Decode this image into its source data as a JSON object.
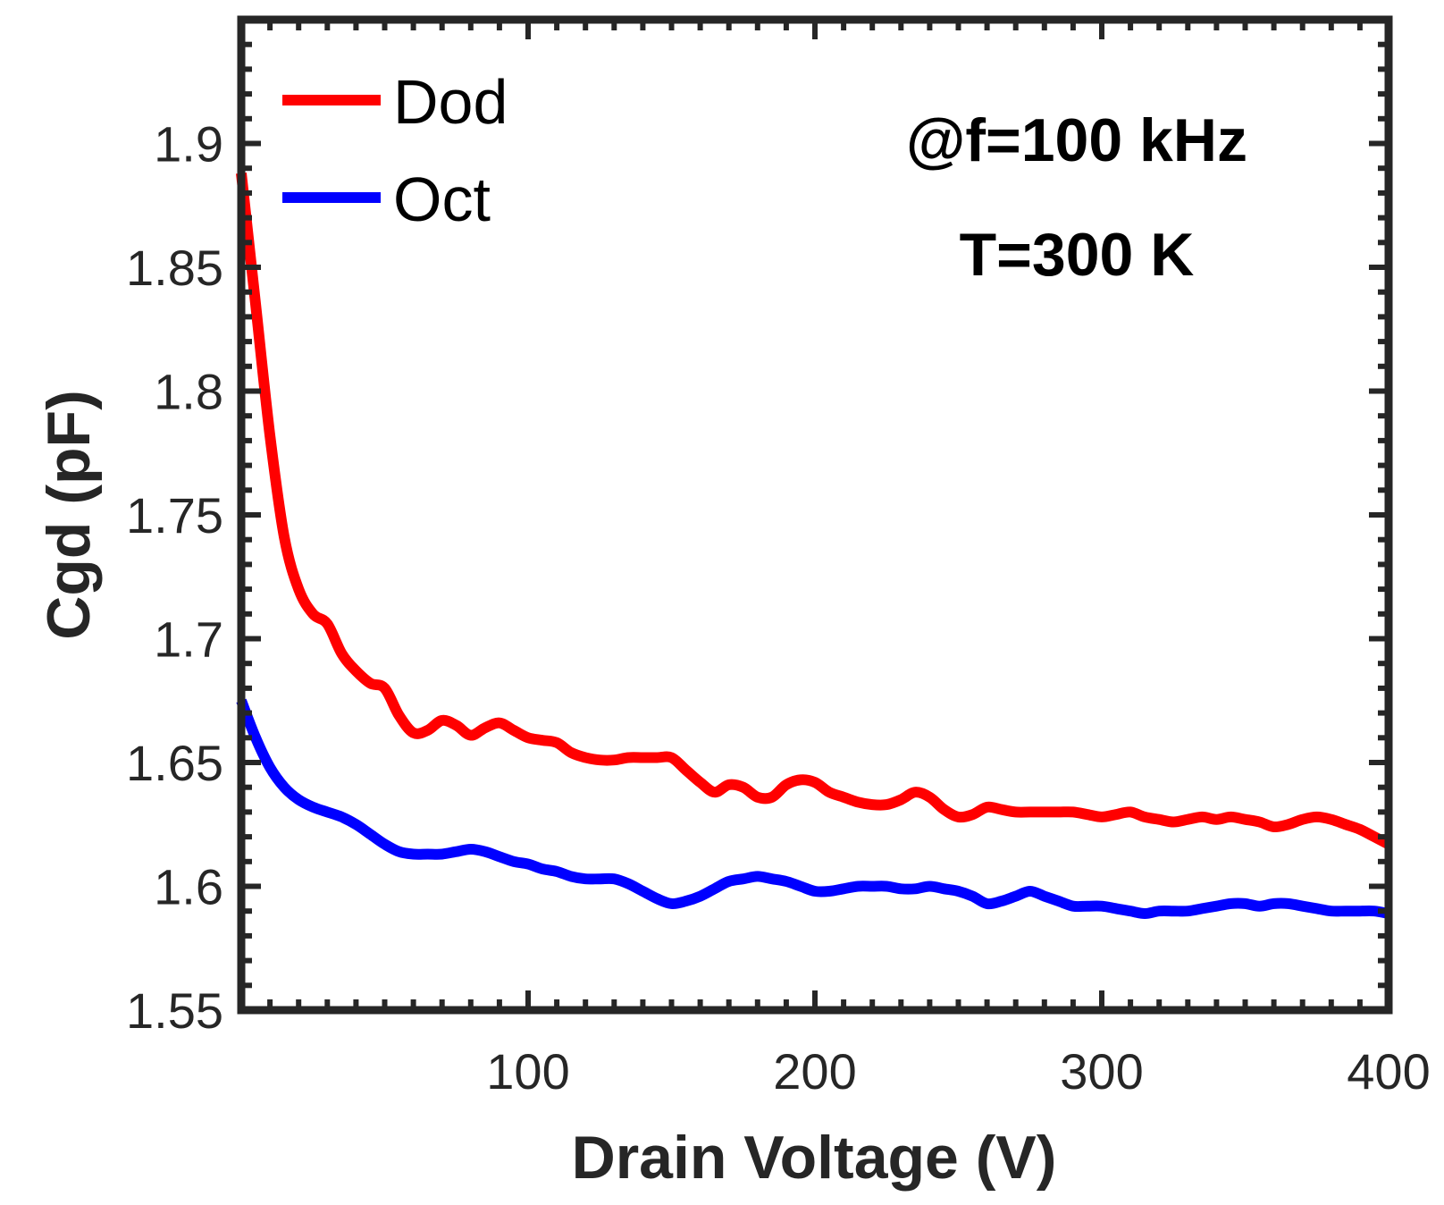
{
  "chart_data": {
    "type": "line",
    "xlabel": "Drain Voltage (V)",
    "ylabel": "Cgd (pF)",
    "xlim": [
      0,
      400
    ],
    "ylim": [
      1.55,
      1.95
    ],
    "xticks": [
      100,
      200,
      300,
      400
    ],
    "xtick_labels": [
      "100",
      "200",
      "300",
      "400"
    ],
    "yticks": [
      1.55,
      1.6,
      1.65,
      1.7,
      1.75,
      1.8,
      1.85,
      1.9
    ],
    "ytick_labels": [
      "1.55",
      "1.6",
      "1.65",
      "1.7",
      "1.75",
      "1.8",
      "1.85",
      "1.9"
    ],
    "grid": false,
    "legend_position": "top-left",
    "annotations": [
      "@f=100 kHz",
      "T=300 K"
    ],
    "series": [
      {
        "name": "Dod",
        "color": "#ff0000",
        "x": [
          0,
          5,
          10,
          15,
          20,
          25,
          30,
          35,
          40,
          45,
          50,
          55,
          60,
          65,
          70,
          75,
          80,
          85,
          90,
          95,
          100,
          105,
          110,
          115,
          120,
          125,
          130,
          135,
          140,
          145,
          150,
          155,
          160,
          165,
          170,
          175,
          180,
          185,
          190,
          195,
          200,
          205,
          210,
          215,
          220,
          225,
          230,
          235,
          240,
          245,
          250,
          255,
          260,
          265,
          270,
          275,
          280,
          285,
          290,
          295,
          300,
          305,
          310,
          315,
          320,
          325,
          330,
          335,
          340,
          345,
          350,
          355,
          360,
          365,
          370,
          375,
          380,
          385,
          390,
          395,
          400
        ],
        "values": [
          1.888,
          1.835,
          1.782,
          1.741,
          1.72,
          1.71,
          1.706,
          1.694,
          1.687,
          1.682,
          1.68,
          1.669,
          1.662,
          1.663,
          1.667,
          1.665,
          1.661,
          1.664,
          1.666,
          1.663,
          1.66,
          1.659,
          1.658,
          1.654,
          1.652,
          1.651,
          1.651,
          1.652,
          1.652,
          1.652,
          1.652,
          1.647,
          1.642,
          1.638,
          1.641,
          1.64,
          1.636,
          1.636,
          1.641,
          1.643,
          1.642,
          1.638,
          1.636,
          1.634,
          1.633,
          1.633,
          1.635,
          1.638,
          1.636,
          1.631,
          1.628,
          1.629,
          1.632,
          1.631,
          1.63,
          1.63,
          1.63,
          1.63,
          1.63,
          1.629,
          1.628,
          1.629,
          1.63,
          1.628,
          1.627,
          1.626,
          1.627,
          1.628,
          1.627,
          1.628,
          1.627,
          1.626,
          1.624,
          1.625,
          1.627,
          1.628,
          1.627,
          1.625,
          1.623,
          1.62,
          1.617
        ]
      },
      {
        "name": "Oct",
        "color": "#0000ff",
        "x": [
          0,
          5,
          10,
          15,
          20,
          25,
          30,
          35,
          40,
          45,
          50,
          55,
          60,
          65,
          70,
          75,
          80,
          85,
          90,
          95,
          100,
          105,
          110,
          115,
          120,
          125,
          130,
          135,
          140,
          145,
          150,
          155,
          160,
          165,
          170,
          175,
          180,
          185,
          190,
          195,
          200,
          205,
          210,
          215,
          220,
          225,
          230,
          235,
          240,
          245,
          250,
          255,
          260,
          265,
          270,
          275,
          280,
          285,
          290,
          295,
          300,
          305,
          310,
          315,
          320,
          325,
          330,
          335,
          340,
          345,
          350,
          355,
          360,
          365,
          370,
          375,
          380,
          385,
          390,
          395,
          400
        ],
        "values": [
          1.675,
          1.66,
          1.648,
          1.64,
          1.635,
          1.632,
          1.63,
          1.628,
          1.625,
          1.621,
          1.617,
          1.614,
          1.613,
          1.613,
          1.613,
          1.614,
          1.615,
          1.614,
          1.612,
          1.61,
          1.609,
          1.607,
          1.606,
          1.604,
          1.603,
          1.603,
          1.603,
          1.601,
          1.598,
          1.595,
          1.593,
          1.594,
          1.596,
          1.599,
          1.602,
          1.603,
          1.604,
          1.603,
          1.602,
          1.6,
          1.598,
          1.598,
          1.599,
          1.6,
          1.6,
          1.6,
          1.599,
          1.599,
          1.6,
          1.599,
          1.598,
          1.596,
          1.593,
          1.594,
          1.596,
          1.598,
          1.596,
          1.594,
          1.592,
          1.592,
          1.592,
          1.591,
          1.59,
          1.589,
          1.59,
          1.59,
          1.59,
          1.591,
          1.592,
          1.593,
          1.593,
          1.592,
          1.593,
          1.593,
          1.592,
          1.591,
          1.59,
          1.59,
          1.59,
          1.59,
          1.589
        ]
      }
    ]
  }
}
